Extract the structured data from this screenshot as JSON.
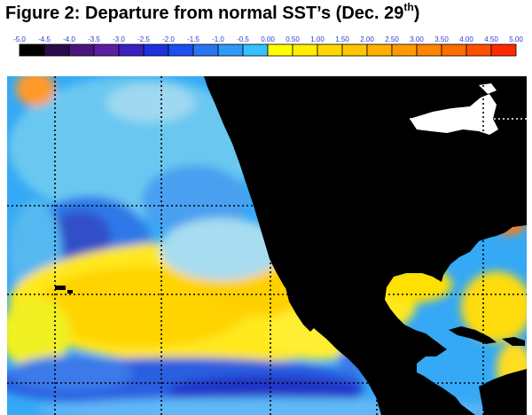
{
  "title": {
    "main": "Figure 2: Departure from normal SST’s (Dec. 29",
    "superscript": "th",
    "close": ")"
  },
  "legend": {
    "tick_labels": [
      "-5.0",
      "-4.5",
      "-4.0",
      "-3.5",
      "-3.0",
      "-2.5",
      "-2.0",
      "-1.5",
      "-1.0",
      "-0.5",
      "0.00",
      "0.50",
      "1.00",
      "1.50",
      "2.00",
      "2.50",
      "3.00",
      "3.50",
      "4.00",
      "4.50",
      "5.00"
    ],
    "colors": [
      "#000000",
      "#2a0a4a",
      "#4b147c",
      "#5a1fa0",
      "#3d1fc0",
      "#1f2ee0",
      "#1a4ff0",
      "#2a75f5",
      "#2f9af8",
      "#35c0ff",
      "#ffff00",
      "#ffee00",
      "#ffd800",
      "#ffc400",
      "#ffb000",
      "#ff9a00",
      "#ff8400",
      "#ff6c00",
      "#ff5000",
      "#ff2a00"
    ]
  },
  "map": {
    "colors": {
      "ocean_base": "#35a9f5",
      "land": "#000000",
      "ice": "#ffffff",
      "grid": "#000000"
    }
  }
}
